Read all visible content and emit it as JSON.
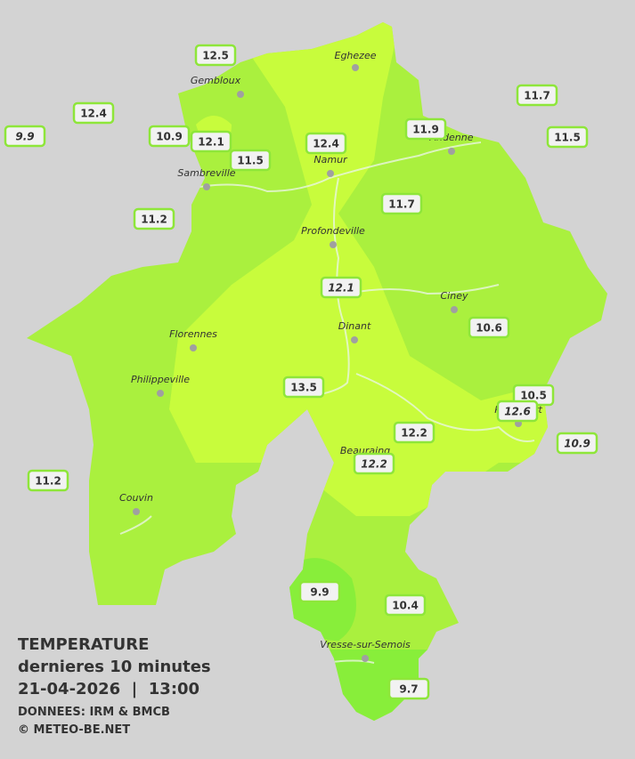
{
  "cities": [
    "Eghezee",
    "Gembloux",
    "Andenne",
    "Namur",
    "Sambreville",
    "Profondeville",
    "Ciney",
    "Dinant",
    "Florennes",
    "Philippeville",
    "Rochefort",
    "Beauraing",
    "Couvin",
    "Vresse-sur-Semois"
  ],
  "stations": [
    12.5,
    12.4,
    9.9,
    10.9,
    12.1,
    11.5,
    12.4,
    11.9,
    11.7,
    11.5,
    11.2,
    11.7,
    12.1,
    10.6,
    13.5,
    10.5,
    12.6,
    10.9,
    12.2,
    12.2,
    11.2,
    9.9,
    10.4,
    9.7
  ],
  "legend": {
    "title": "TEMPERATURE",
    "subtitle": "dernieres 10 minutes",
    "datetime": "21-04-2026  |  13:00",
    "source": "DONNEES: IRM & BMCB",
    "copyright": "© METEO-BE.NET"
  }
}
